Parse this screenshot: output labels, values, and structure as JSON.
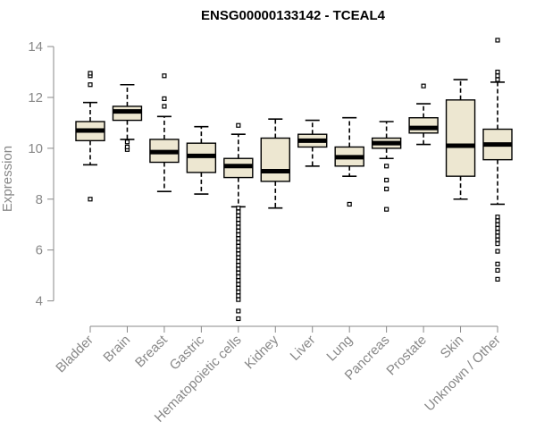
{
  "chart_data": {
    "type": "box",
    "title": "ENSG00000133142 - TCEAL4",
    "xlabel": "",
    "ylabel": "Expression",
    "ylim": [
      3.0,
      14.6
    ],
    "yticks": [
      4,
      6,
      8,
      10,
      12,
      14
    ],
    "grid": false,
    "box_fill": "#ede7d1",
    "box_stroke": "#000000",
    "axis_color": "#888888",
    "categories": [
      "Bladder",
      "Brain",
      "Breast",
      "Gastric",
      "Hematopoietic cells",
      "Kidney",
      "Liver",
      "Lung",
      "Pancreas",
      "Prostate",
      "Skin",
      "Unknown / Other"
    ],
    "boxes": [
      {
        "q1": 10.3,
        "median": 10.7,
        "q3": 11.05,
        "whisker_low": 9.35,
        "whisker_high": 11.8,
        "outliers": [
          8.0,
          12.5,
          12.85,
          12.95
        ]
      },
      {
        "q1": 11.1,
        "median": 11.45,
        "q3": 11.65,
        "whisker_low": 10.35,
        "whisker_high": 12.5,
        "outliers": [
          9.95,
          10.05,
          10.25
        ]
      },
      {
        "q1": 9.45,
        "median": 9.85,
        "q3": 10.35,
        "whisker_low": 8.3,
        "whisker_high": 11.25,
        "outliers": [
          11.65,
          11.95,
          12.85
        ]
      },
      {
        "q1": 9.05,
        "median": 9.7,
        "q3": 10.2,
        "whisker_low": 8.2,
        "whisker_high": 10.85,
        "outliers": []
      },
      {
        "q1": 8.85,
        "median": 9.3,
        "q3": 9.6,
        "whisker_low": 7.7,
        "whisker_high": 10.55,
        "outliers": [
          10.9,
          7.65,
          7.5,
          7.35,
          7.2,
          7.05,
          6.9,
          6.75,
          6.6,
          6.45,
          6.3,
          6.15,
          6.0,
          5.85,
          5.7,
          5.55,
          5.4,
          5.25,
          5.1,
          4.95,
          4.8,
          4.65,
          4.5,
          4.35,
          4.2,
          4.05,
          3.6,
          3.3
        ]
      },
      {
        "q1": 8.7,
        "median": 9.1,
        "q3": 10.4,
        "whisker_low": 7.65,
        "whisker_high": 11.15,
        "outliers": []
      },
      {
        "q1": 10.05,
        "median": 10.3,
        "q3": 10.55,
        "whisker_low": 9.3,
        "whisker_high": 11.1,
        "outliers": []
      },
      {
        "q1": 9.3,
        "median": 9.65,
        "q3": 10.05,
        "whisker_low": 8.9,
        "whisker_high": 11.2,
        "outliers": [
          7.8
        ]
      },
      {
        "q1": 10.0,
        "median": 10.2,
        "q3": 10.4,
        "whisker_low": 9.6,
        "whisker_high": 11.05,
        "outliers": [
          9.3,
          8.75,
          8.4,
          7.6
        ]
      },
      {
        "q1": 10.6,
        "median": 10.8,
        "q3": 11.2,
        "whisker_low": 10.15,
        "whisker_high": 11.75,
        "outliers": [
          12.45
        ]
      },
      {
        "q1": 8.9,
        "median": 10.1,
        "q3": 11.9,
        "whisker_low": 8.0,
        "whisker_high": 12.7,
        "outliers": []
      },
      {
        "q1": 9.55,
        "median": 10.15,
        "q3": 10.75,
        "whisker_low": 7.8,
        "whisker_high": 12.6,
        "outliers": [
          14.25,
          13.0,
          12.85,
          12.7,
          7.3,
          7.15,
          7.0,
          6.85,
          6.7,
          6.55,
          6.4,
          6.25,
          5.95,
          5.45,
          5.2,
          4.85
        ]
      }
    ]
  }
}
